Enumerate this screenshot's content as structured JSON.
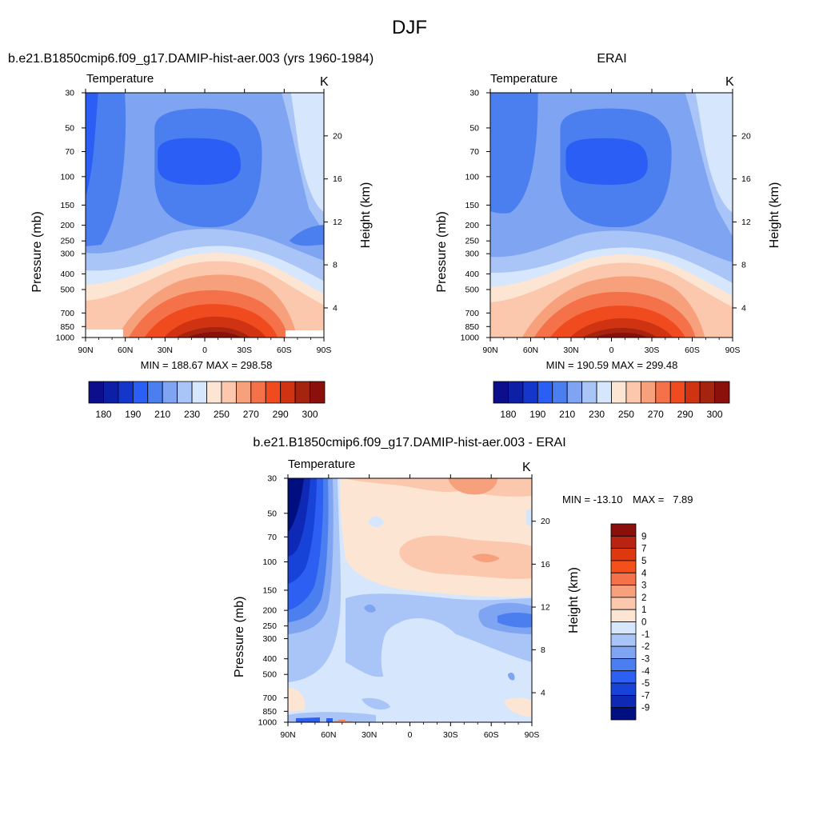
{
  "page_title": "DJF",
  "colors": {
    "abs_levels": [
      "#0c0e8c",
      "#0d1fa5",
      "#1536cb",
      "#2b5ef4",
      "#4b7ff0",
      "#7fa4f2",
      "#a9c5f7",
      "#d6e6fc",
      "#fde5d4",
      "#fbc8ad",
      "#f7a07c",
      "#f47149",
      "#ef4b1e",
      "#cf3311",
      "#a52410",
      "#8b0f0a"
    ],
    "diff_levels": [
      "#000f80",
      "#0e29b5",
      "#1743d8",
      "#2d5ff2",
      "#4b7ff0",
      "#7fa4f2",
      "#a9c5f7",
      "#d6e6fc",
      "#fde5d4",
      "#fbc8ad",
      "#f7a07c",
      "#f47149",
      "#f4501c",
      "#e0380e",
      "#b82411",
      "#8b0f0a"
    ]
  },
  "chart_data": [
    {
      "type": "heatmap",
      "title": "b.e21.B1850cmip6.f09_g17.DAMIP-hist-aer.003 (yrs 1960-1984)",
      "variable": "Temperature",
      "units": "K",
      "ylabel": "Pressure (mb)",
      "ylabel_right": "Height (km)",
      "x_ticks": [
        "90N",
        "60N",
        "30N",
        "0",
        "30S",
        "60S",
        "90S"
      ],
      "y_ticks": [
        "30",
        "50",
        "70",
        "100",
        "150",
        "200",
        "250",
        "300",
        "400",
        "500",
        "700",
        "850",
        "1000"
      ],
      "y2_ticks": [
        "20",
        "16",
        "12",
        "8",
        "4"
      ],
      "stats": "MIN = 188.67  MAX = 298.58",
      "min": 188.67,
      "max": 298.58,
      "colorbar_labels": [
        "180",
        "190",
        "210",
        "230",
        "250",
        "270",
        "290",
        "300"
      ]
    },
    {
      "type": "heatmap",
      "title": "ERAI",
      "variable": "Temperature",
      "units": "K",
      "ylabel": "Pressure (mb)",
      "ylabel_right": "Height (km)",
      "x_ticks": [
        "90N",
        "60N",
        "30N",
        "0",
        "30S",
        "60S",
        "90S"
      ],
      "y_ticks": [
        "30",
        "50",
        "70",
        "100",
        "150",
        "200",
        "250",
        "300",
        "400",
        "500",
        "700",
        "850",
        "1000"
      ],
      "y2_ticks": [
        "20",
        "16",
        "12",
        "8",
        "4"
      ],
      "stats": "MIN = 190.59  MAX = 299.48",
      "min": 190.59,
      "max": 299.48,
      "colorbar_labels": [
        "180",
        "190",
        "210",
        "230",
        "250",
        "270",
        "290",
        "300"
      ]
    },
    {
      "type": "heatmap",
      "title": "b.e21.B1850cmip6.f09_g17.DAMIP-hist-aer.003 - ERAI",
      "variable": "Temperature",
      "units": "K",
      "ylabel": "Pressure (mb)",
      "ylabel_right": "Height (km)",
      "x_ticks": [
        "90N",
        "60N",
        "30N",
        "0",
        "30S",
        "60S",
        "90S"
      ],
      "y_ticks": [
        "30",
        "50",
        "70",
        "100",
        "150",
        "200",
        "250",
        "300",
        "400",
        "500",
        "700",
        "850",
        "1000"
      ],
      "y2_ticks": [
        "20",
        "16",
        "12",
        "8",
        "4"
      ],
      "stats_min": "MIN = -13.10",
      "stats_max": "MAX =   7.89",
      "min": -13.1,
      "max": 7.89,
      "colorbar_labels": [
        "9",
        "7",
        "5",
        "4",
        "3",
        "2",
        "1",
        "0",
        "-1",
        "-2",
        "-3",
        "-4",
        "-5",
        "-7",
        "-9"
      ]
    }
  ]
}
